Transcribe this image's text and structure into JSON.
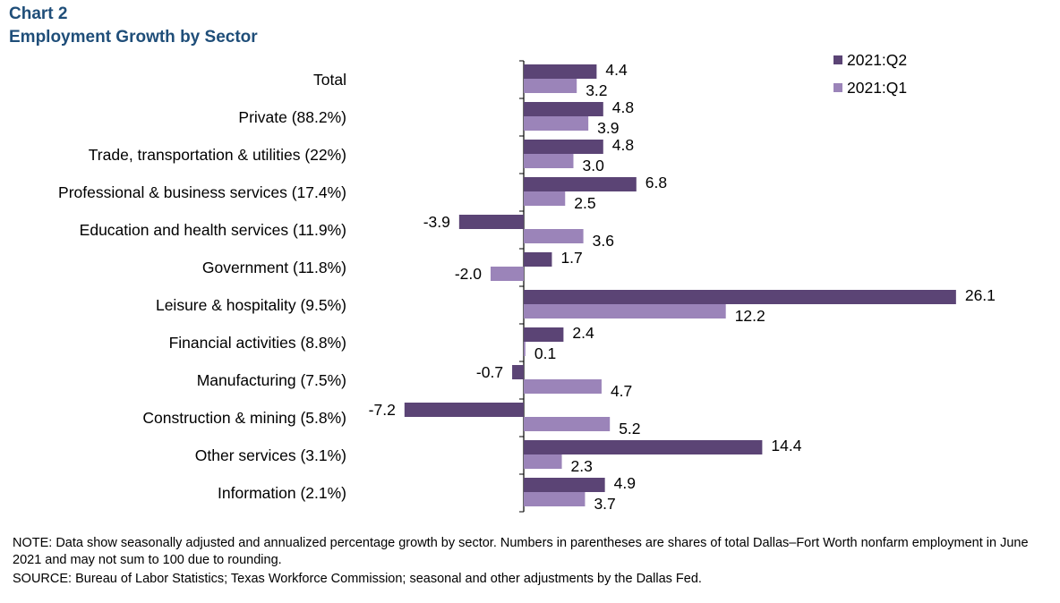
{
  "header": {
    "chart_label": "Chart 2",
    "title": "Employment Growth by Sector"
  },
  "chart_data": {
    "type": "bar",
    "orientation": "horizontal",
    "title": "Employment Growth by Sector",
    "categories": [
      "Total",
      "Private (88.2%)",
      "Trade, transportation & utilities (22%)",
      "Professional & business services (17.4%)",
      "Education and health services (11.9%)",
      "Government (11.8%)",
      "Leisure & hospitality (9.5%)",
      "Financial activities (8.8%)",
      "Manufacturing (7.5%)",
      "Construction & mining (5.8%)",
      "Other services (3.1%)",
      "Information (2.1%)"
    ],
    "series": [
      {
        "name": "2021:Q2",
        "color": "#5b4475",
        "values": [
          4.4,
          4.8,
          4.8,
          6.8,
          -3.9,
          1.7,
          26.1,
          2.4,
          -0.7,
          -7.2,
          14.4,
          4.9
        ],
        "labels": [
          "4.4",
          "4.8",
          "4.8",
          "6.8",
          "-3.9",
          "1.7",
          "26.1",
          "2.4",
          "-0.7",
          "-7.2",
          "14.4",
          "4.9"
        ]
      },
      {
        "name": "2021:Q1",
        "color": "#9b84b9",
        "values": [
          3.2,
          3.9,
          3.0,
          2.5,
          3.6,
          -2.0,
          12.2,
          0.1,
          4.7,
          5.2,
          2.3,
          3.7
        ],
        "labels": [
          "3.2",
          "3.9",
          "3.0",
          "2.5",
          "3.6",
          "-2.0",
          "12.2",
          "0.1",
          "4.7",
          "5.2",
          "2.3",
          "3.7"
        ]
      }
    ],
    "legend_position": "top-right",
    "grid": false,
    "xlim": [
      -7.2,
      26.1
    ]
  },
  "footer": {
    "note": "NOTE:  Data show seasonally adjusted and annualized percentage growth by sector. Numbers in parentheses are shares of total Dallas–Fort Worth nonfarm employment  in June 2021 and may not sum to 100 due to rounding.",
    "source": "SOURCE:  Bureau of Labor Statistics; Texas  Workforce Commission;  seasonal  and other adjustments  by the Dallas Fed."
  }
}
